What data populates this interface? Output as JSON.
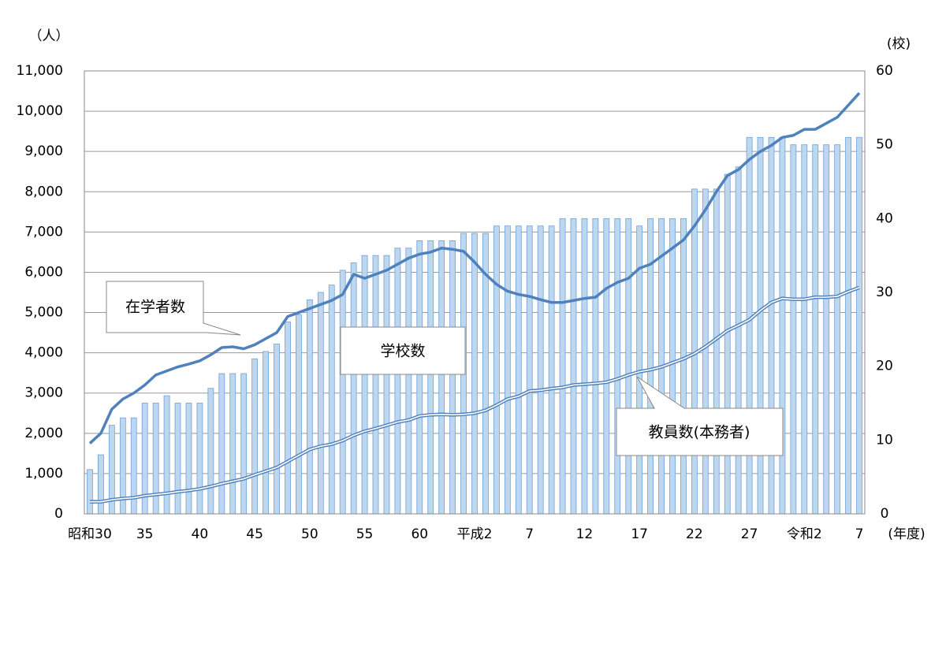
{
  "chart_data": {
    "type": "bar-line",
    "categories": [
      "昭和30",
      null,
      null,
      null,
      null,
      "35",
      null,
      null,
      null,
      null,
      "40",
      null,
      null,
      null,
      null,
      "45",
      null,
      null,
      null,
      null,
      "50",
      null,
      null,
      null,
      null,
      "55",
      null,
      null,
      null,
      null,
      "60",
      null,
      null,
      null,
      null,
      "平成2",
      null,
      null,
      null,
      null,
      "7",
      null,
      null,
      null,
      null,
      "12",
      null,
      null,
      null,
      null,
      "17",
      null,
      null,
      null,
      null,
      "22",
      null,
      null,
      null,
      null,
      "27",
      null,
      null,
      null,
      null,
      "令和2",
      null,
      null,
      null,
      null,
      "7"
    ],
    "series": [
      {
        "name": "学校数",
        "type": "bar",
        "axis": "y2",
        "color": "#bdd7ee",
        "values": [
          6,
          8,
          12,
          13,
          13,
          15,
          15,
          16,
          15,
          15,
          15,
          17,
          19,
          19,
          19,
          21,
          22,
          23,
          26,
          27,
          29,
          30,
          31,
          33,
          34,
          35,
          35,
          35,
          36,
          36,
          37,
          37,
          37,
          37,
          38,
          38,
          38,
          39,
          39,
          39,
          39,
          39,
          39,
          40,
          40,
          40,
          40,
          40,
          40,
          40,
          39,
          40,
          40,
          40,
          40,
          44,
          44,
          44,
          46,
          47,
          51,
          51,
          51,
          51,
          50,
          50,
          50,
          50,
          50,
          51,
          51
        ]
      },
      {
        "name": "在学者数",
        "type": "line",
        "color": "#4f81bd",
        "values": [
          1750,
          2000,
          2600,
          2850,
          3000,
          3200,
          3450,
          3550,
          3650,
          3720,
          3800,
          3950,
          4130,
          4150,
          4100,
          4200,
          4350,
          4500,
          4900,
          5000,
          5100,
          5200,
          5300,
          5450,
          5950,
          5850,
          5950,
          6050,
          6200,
          6350,
          6450,
          6500,
          6600,
          6570,
          6520,
          6250,
          5950,
          5700,
          5530,
          5450,
          5400,
          5320,
          5250,
          5250,
          5300,
          5350,
          5380,
          5600,
          5750,
          5850,
          6100,
          6200,
          6400,
          6600,
          6800,
          7150,
          7550,
          8000,
          8400,
          8550,
          8800,
          9000,
          9150,
          9350,
          9400,
          9550,
          9550,
          9700,
          9850,
          10150,
          10450
        ]
      },
      {
        "name": "教員数(本務者)",
        "type": "double-line",
        "color": "#4f81bd",
        "values": [
          300,
          300,
          350,
          380,
          400,
          450,
          480,
          510,
          550,
          580,
          620,
          680,
          750,
          810,
          870,
          970,
          1060,
          1150,
          1300,
          1450,
          1600,
          1680,
          1730,
          1820,
          1950,
          2050,
          2120,
          2200,
          2280,
          2330,
          2430,
          2460,
          2470,
          2460,
          2470,
          2500,
          2570,
          2700,
          2850,
          2920,
          3050,
          3070,
          3110,
          3140,
          3200,
          3220,
          3240,
          3270,
          3350,
          3450,
          3530,
          3580,
          3650,
          3750,
          3850,
          3980,
          4150,
          4350,
          4550,
          4680,
          4820,
          5050,
          5250,
          5350,
          5330,
          5330,
          5380,
          5380,
          5400,
          5520,
          5620
        ]
      }
    ],
    "y_unit": "（人）",
    "y2_unit": "(校)",
    "x_unit": "(年度)",
    "ylim": [
      0,
      11000
    ],
    "yticks": [
      0,
      {
        "value": 1000,
        "label": "1,000"
      },
      {
        "value": 2000,
        "label": "2,000"
      },
      {
        "value": 3000,
        "label": "3,000"
      },
      {
        "value": 4000,
        "label": "4,000"
      },
      {
        "value": 5000,
        "label": "5,000"
      },
      {
        "value": 6000,
        "label": "6,000"
      },
      {
        "value": 7000,
        "label": "7,000"
      },
      {
        "value": 8000,
        "label": "8,000"
      },
      {
        "value": 9000,
        "label": "9,000"
      },
      {
        "value": 10000,
        "label": "10,000"
      },
      {
        "value": 11000,
        "label": "11,000"
      }
    ],
    "y2lim": [
      0,
      60
    ],
    "y2ticks": [
      0,
      10,
      20,
      30,
      40,
      50,
      60
    ],
    "grid": true
  }
}
